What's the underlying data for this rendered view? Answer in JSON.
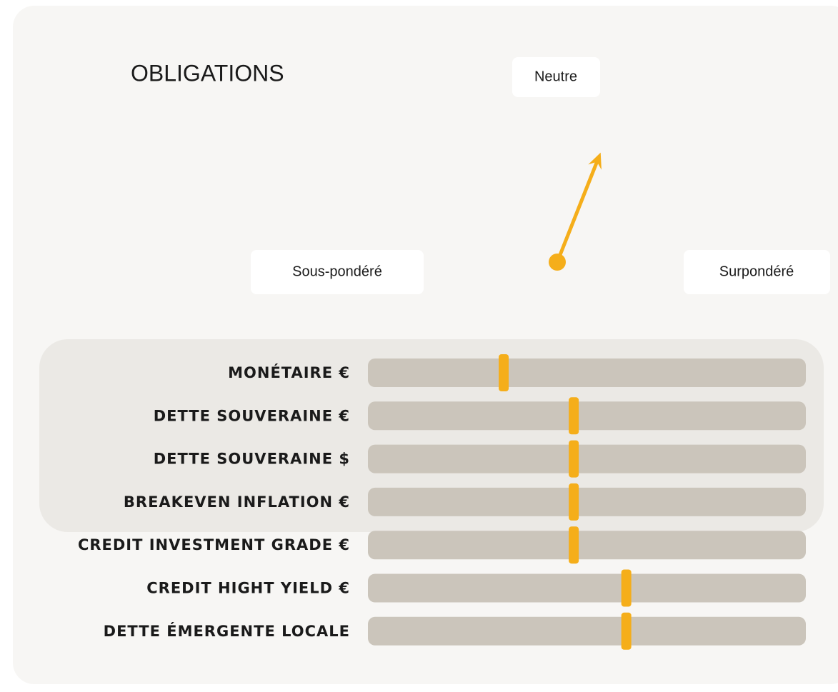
{
  "title": "OBLIGATIONS",
  "gauge": {
    "labels": {
      "left": "Sous-pondéré",
      "top": "Neutre",
      "right": "Surpondéré"
    },
    "value": 62
  },
  "scale": [
    0,
    100
  ],
  "rows": [
    {
      "label": "MONÉTAIRE €",
      "value": 31
    },
    {
      "label": "DETTE SOUVERAINE €",
      "value": 47
    },
    {
      "label": "DETTE SOUVERAINE $",
      "value": 47
    },
    {
      "label": "BREAKEVEN INFLATION €",
      "value": 47
    },
    {
      "label": "CREDIT INVESTMENT GRADE €",
      "value": 47
    },
    {
      "label": "CREDIT HIGHT YIELD €",
      "value": 59
    },
    {
      "label": "DETTE ÉMERGENTE LOCALE",
      "value": 59
    }
  ]
}
